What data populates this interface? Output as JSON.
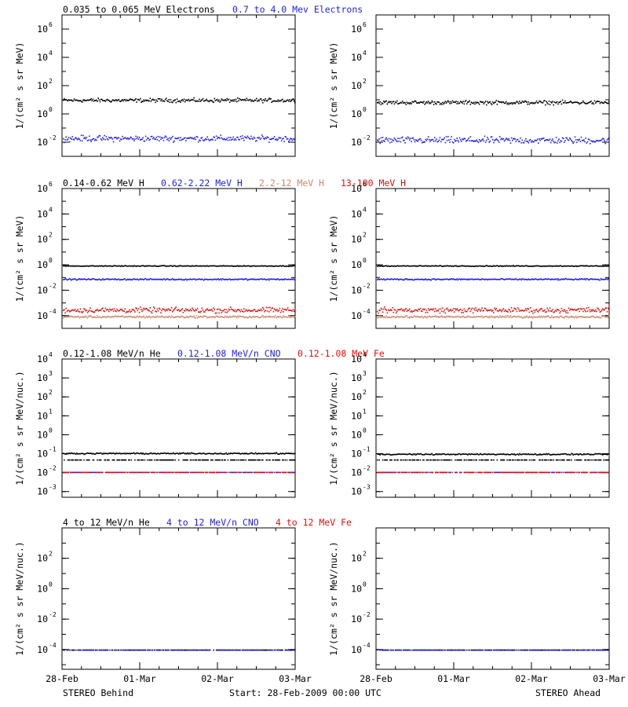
{
  "colors": {
    "black": "#000000",
    "blue": "#1f1fe6",
    "tan": "#c98a70",
    "red": "#e01010"
  },
  "rows": [
    {
      "legend": [
        {
          "text": "0.035 to 0.065 MeV Electrons",
          "color": "black"
        },
        {
          "text": "0.7 to 4.0 Mev Electrons",
          "color": "blue"
        }
      ],
      "ylabel": "1/(cm² s sr MeV)",
      "ticks": [
        {
          "base": "10",
          "exp": "-2",
          "value": 0.01
        },
        {
          "base": "10",
          "exp": "0",
          "value": 1
        },
        {
          "base": "10",
          "exp": "2",
          "value": 100
        },
        {
          "base": "10",
          "exp": "4",
          "value": 10000
        },
        {
          "base": "10",
          "exp": "6",
          "value": 1000000
        }
      ],
      "ylim": [
        0.001,
        10000000
      ]
    },
    {
      "legend": [
        {
          "text": "0.14-0.62 MeV H",
          "color": "black"
        },
        {
          "text": "0.62-2.22 MeV H",
          "color": "blue"
        },
        {
          "text": "2.2-12 MeV H",
          "color": "tan"
        },
        {
          "text": "13-100 MeV H",
          "color": "red"
        }
      ],
      "ylabel": "1/(cm² s sr MeV)",
      "ticks": [
        {
          "base": "10",
          "exp": "-4",
          "value": 0.0001
        },
        {
          "base": "10",
          "exp": "-2",
          "value": 0.01
        },
        {
          "base": "10",
          "exp": "0",
          "value": 1
        },
        {
          "base": "10",
          "exp": "2",
          "value": 100
        },
        {
          "base": "10",
          "exp": "4",
          "value": 10000
        },
        {
          "base": "10",
          "exp": "6",
          "value": 1000000
        }
      ],
      "ylim": [
        1e-05,
        1000000
      ]
    },
    {
      "legend": [
        {
          "text": "0.12-1.08 MeV/n He",
          "color": "black"
        },
        {
          "text": "0.12-1.08 MeV/n CNO",
          "color": "blue"
        },
        {
          "text": "0.12-1.08 MeV Fe",
          "color": "red"
        }
      ],
      "ylabel": "1/(cm² s sr MeV/nuc.)",
      "ticks": [
        {
          "base": "10",
          "exp": "-3",
          "value": 0.001
        },
        {
          "base": "10",
          "exp": "-2",
          "value": 0.01
        },
        {
          "base": "10",
          "exp": "-1",
          "value": 0.1
        },
        {
          "base": "10",
          "exp": "0",
          "value": 1
        },
        {
          "base": "10",
          "exp": "1",
          "value": 10
        },
        {
          "base": "10",
          "exp": "2",
          "value": 100
        },
        {
          "base": "10",
          "exp": "3",
          "value": 1000
        },
        {
          "base": "10",
          "exp": "4",
          "value": 10000
        }
      ],
      "ylim": [
        0.0005,
        10000
      ]
    },
    {
      "legend": [
        {
          "text": "4 to 12 MeV/n He",
          "color": "black"
        },
        {
          "text": "4 to 12 MeV/n CNO",
          "color": "blue"
        },
        {
          "text": "4 to 12 MeV Fe",
          "color": "red"
        }
      ],
      "ylabel": "1/(cm² s sr MeV/nuc.)",
      "ticks": [
        {
          "base": "10",
          "exp": "-4",
          "value": 0.0001
        },
        {
          "base": "10",
          "exp": "-2",
          "value": 0.01
        },
        {
          "base": "10",
          "exp": "0",
          "value": 1
        },
        {
          "base": "10",
          "exp": "2",
          "value": 100
        }
      ],
      "ylim": [
        5e-06,
        10000
      ]
    }
  ],
  "xticks": [
    {
      "label": "28-Feb",
      "day": 0
    },
    {
      "label": "01-Mar",
      "day": 1
    },
    {
      "label": "02-Mar",
      "day": 2
    },
    {
      "label": "03-Mar",
      "day": 3
    }
  ],
  "footer": {
    "left": "STEREO Behind",
    "center": "Start: 28-Feb-2009 00:00 UTC",
    "right": "STEREO Ahead"
  },
  "chart_data": {
    "type": "scatter",
    "x_unit": "days from 28-Feb-2009 00:00 UTC",
    "xlim": [
      0,
      3
    ],
    "log_y": true,
    "panels": [
      {
        "spacecraft": "STEREO Behind",
        "row": 0,
        "series": [
          {
            "name": "0.035 to 0.065 MeV Electrons",
            "color": "black",
            "level": 10,
            "spread": 0.2
          },
          {
            "name": "0.7 to 4.0 Mev Electrons",
            "color": "blue",
            "level": 0.02,
            "spread": 0.3
          }
        ]
      },
      {
        "spacecraft": "STEREO Ahead",
        "row": 0,
        "series": [
          {
            "name": "0.035 to 0.065 MeV Electrons",
            "color": "black",
            "level": 7,
            "spread": 0.2
          },
          {
            "name": "0.7 to 4.0 Mev Electrons",
            "color": "blue",
            "level": 0.015,
            "spread": 0.35
          }
        ]
      },
      {
        "spacecraft": "STEREO Behind",
        "row": 1,
        "series": [
          {
            "name": "0.14-0.62 MeV H",
            "color": "black",
            "level": 0.9,
            "spread": 0.05
          },
          {
            "name": "0.62-2.22 MeV H",
            "color": "blue",
            "level": 0.08,
            "spread": 0.08
          },
          {
            "name": "2.2-12 MeV H",
            "color": "tan",
            "level": 9e-05,
            "spread": 0.12
          },
          {
            "name": "13-100 MeV H",
            "color": "red",
            "level": 0.0003,
            "spread": 0.3
          }
        ]
      },
      {
        "spacecraft": "STEREO Ahead",
        "row": 1,
        "series": [
          {
            "name": "0.14-0.62 MeV H",
            "color": "black",
            "level": 0.9,
            "spread": 0.05
          },
          {
            "name": "0.62-2.22 MeV H",
            "color": "blue",
            "level": 0.08,
            "spread": 0.08
          },
          {
            "name": "2.2-12 MeV H",
            "color": "tan",
            "level": 9e-05,
            "spread": 0.12
          },
          {
            "name": "13-100 MeV H",
            "color": "red",
            "level": 0.0003,
            "spread": 0.3
          }
        ]
      },
      {
        "spacecraft": "STEREO Behind",
        "row": 2,
        "series": [
          {
            "name": "0.12-1.08 MeV/n He",
            "color": "black",
            "level": 0.05,
            "spread": 0.0
          },
          {
            "name": "0.12-1.08 MeV/n He",
            "color": "black",
            "level": 0.11,
            "spread": 0.05
          },
          {
            "name": "0.12-1.08 MeV/n CNO",
            "color": "blue",
            "level": 0.011,
            "spread": 0.0
          },
          {
            "name": "0.12-1.08 MeV Fe",
            "color": "red",
            "level": 0.011,
            "spread": 0.0
          }
        ]
      },
      {
        "spacecraft": "STEREO Ahead",
        "row": 2,
        "series": [
          {
            "name": "0.12-1.08 MeV/n He",
            "color": "black",
            "level": 0.05,
            "spread": 0.0
          },
          {
            "name": "0.12-1.08 MeV/n He",
            "color": "black",
            "level": 0.1,
            "spread": 0.05
          },
          {
            "name": "0.12-1.08 MeV/n CNO",
            "color": "blue",
            "level": 0.011,
            "spread": 0.0
          },
          {
            "name": "0.12-1.08 MeV Fe",
            "color": "red",
            "level": 0.011,
            "spread": 0.0
          }
        ]
      },
      {
        "spacecraft": "STEREO Behind",
        "row": 3,
        "series": [
          {
            "name": "4 to 12 MeV/n He",
            "color": "black",
            "level": 0.0001,
            "spread": 0.0
          },
          {
            "name": "4 to 12 MeV/n CNO",
            "color": "blue",
            "level": 0.0001,
            "spread": 0.0
          }
        ]
      },
      {
        "spacecraft": "STEREO Ahead",
        "row": 3,
        "series": [
          {
            "name": "4 to 12 MeV/n He",
            "color": "black",
            "level": 0.0001,
            "spread": 0.0
          },
          {
            "name": "4 to 12 MeV/n CNO",
            "color": "blue",
            "level": 0.0001,
            "spread": 0.0
          }
        ]
      }
    ]
  }
}
